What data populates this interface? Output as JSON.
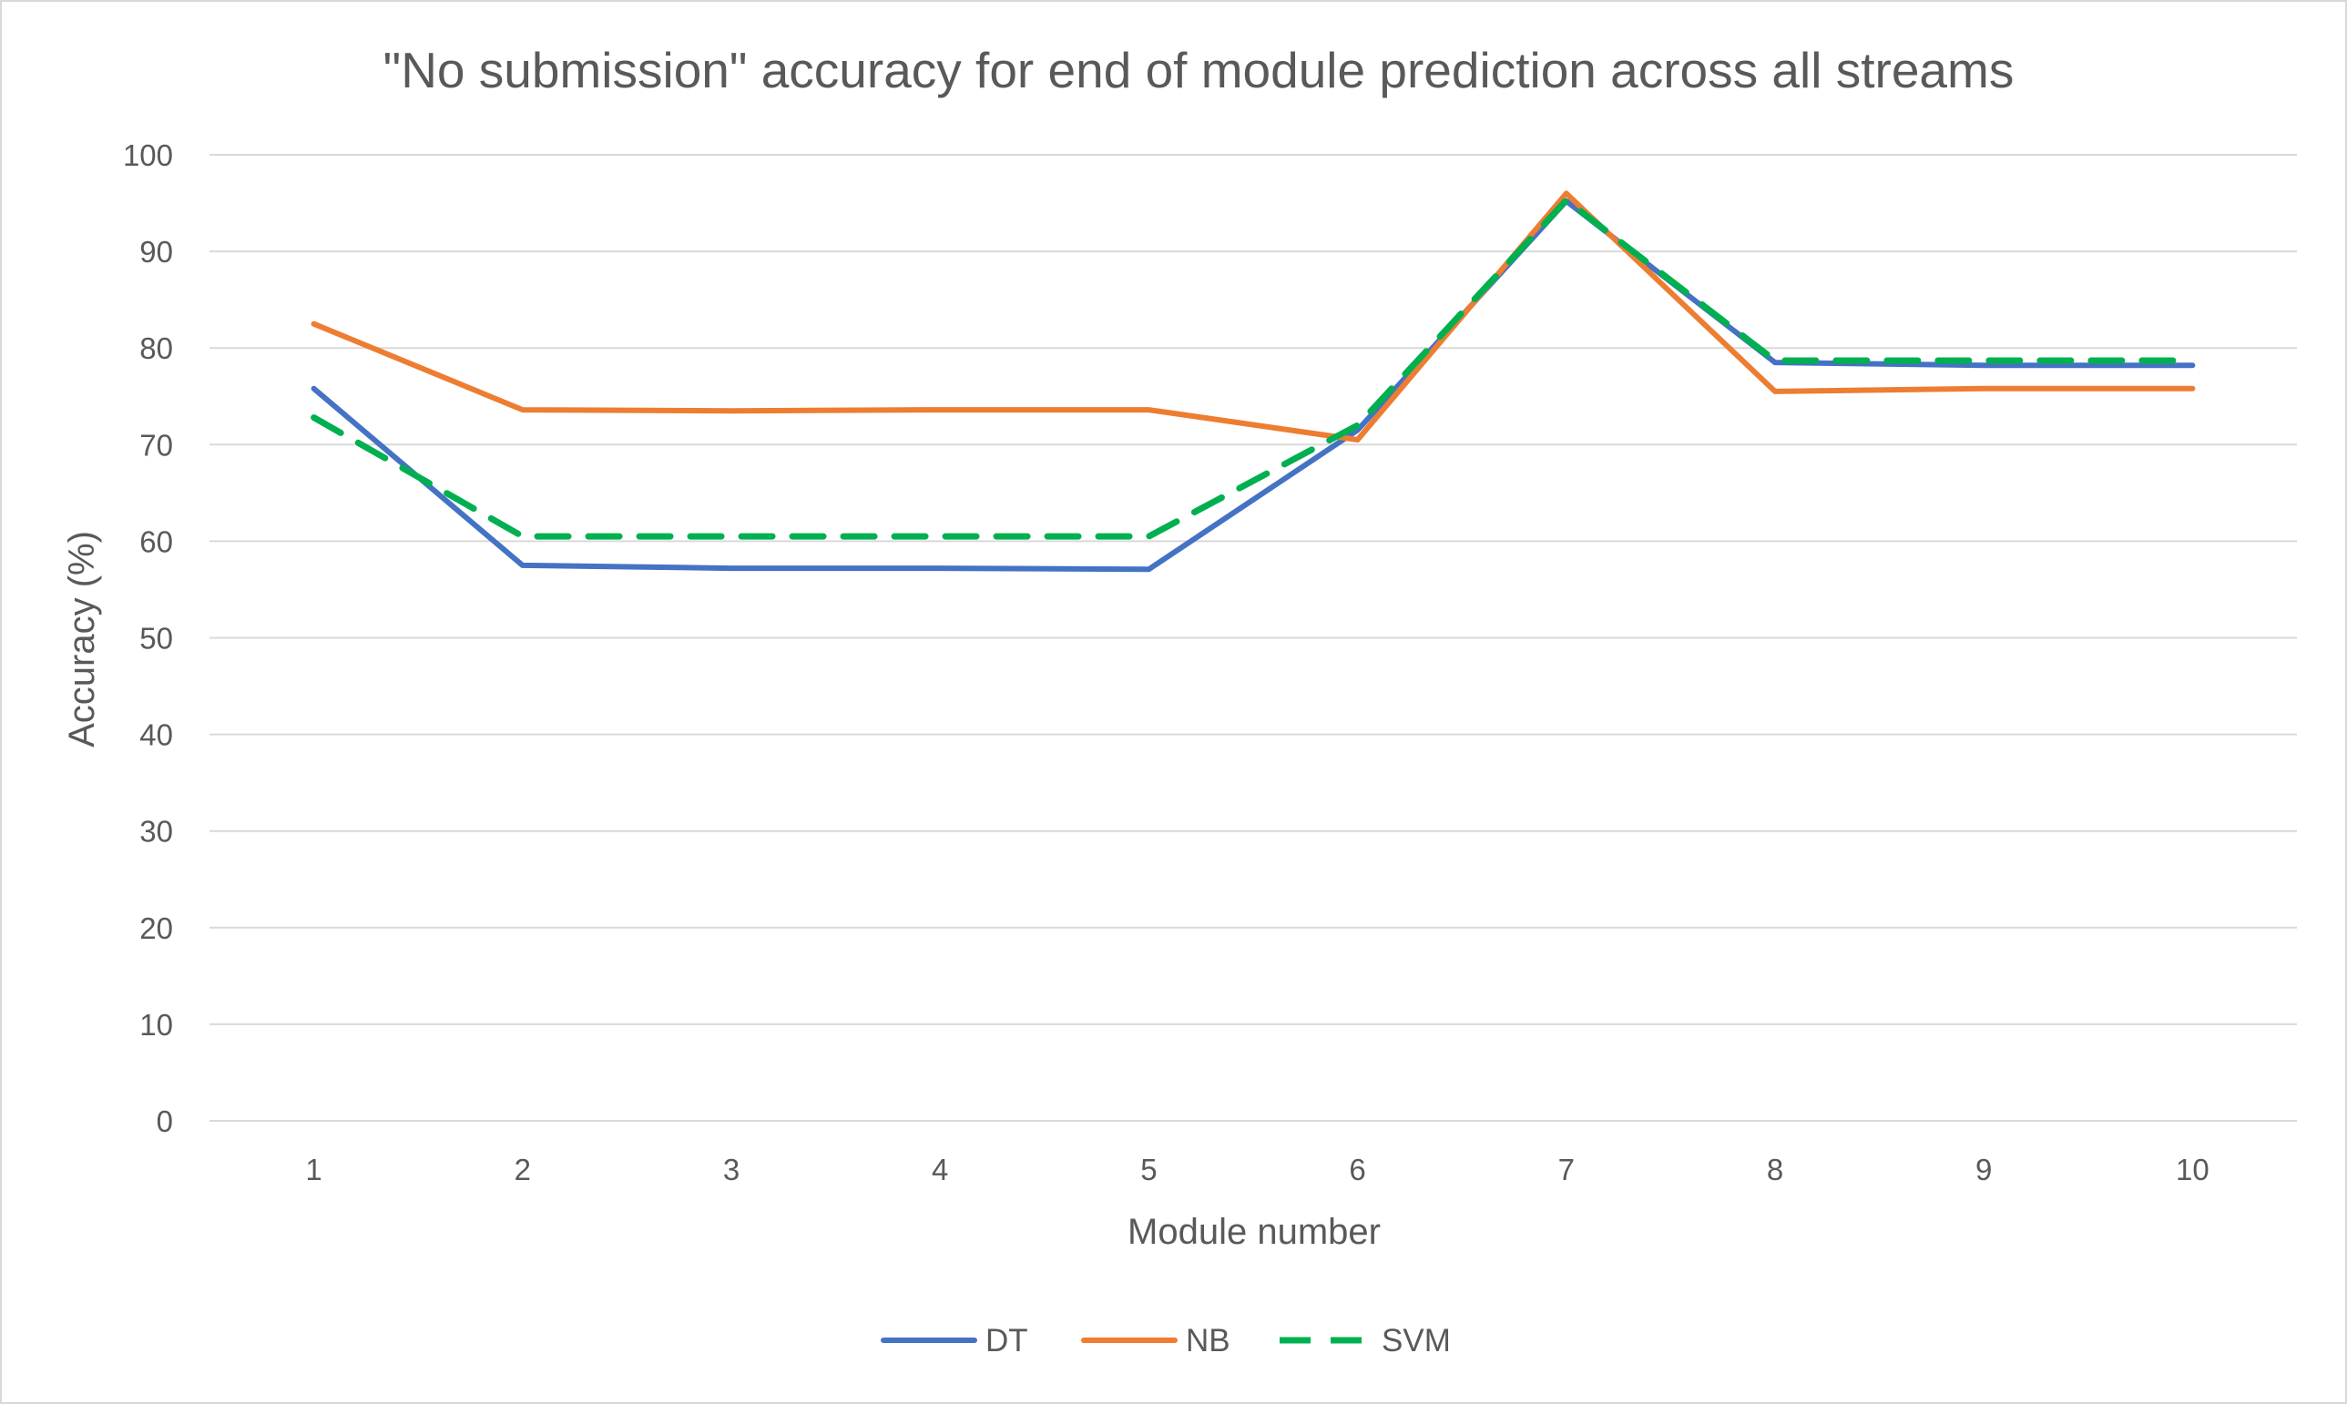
{
  "chart_data": {
    "type": "line",
    "title": "\"No submission\" accuracy for end of module prediction across all streams",
    "xlabel": "Module number",
    "ylabel": "Accuracy (%)",
    "categories": [
      "1",
      "2",
      "3",
      "4",
      "5",
      "6",
      "7",
      "8",
      "9",
      "10"
    ],
    "ylim": [
      0,
      100
    ],
    "yticks": [
      0,
      10,
      20,
      30,
      40,
      50,
      60,
      70,
      80,
      90,
      100
    ],
    "grid": true,
    "legend_position": "bottom",
    "series": [
      {
        "name": "DT",
        "color": "#4472C4",
        "dash": "solid",
        "values": [
          75.8,
          57.5,
          57.2,
          57.2,
          57.1,
          71.5,
          95.2,
          78.5,
          78.2,
          78.2
        ]
      },
      {
        "name": "NB",
        "color": "#ED7D31",
        "dash": "solid",
        "values": [
          82.5,
          73.6,
          73.5,
          73.6,
          73.6,
          70.5,
          96.0,
          75.5,
          75.8,
          75.8
        ]
      },
      {
        "name": "SVM",
        "color": "#00B050",
        "dash": "dashed",
        "values": [
          72.8,
          60.5,
          60.5,
          60.5,
          60.5,
          72.0,
          95.3,
          78.7,
          78.7,
          78.7
        ]
      }
    ]
  }
}
